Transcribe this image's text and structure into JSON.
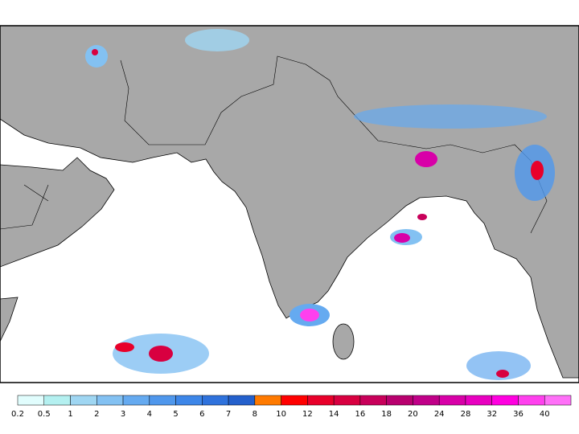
{
  "colorbar": {
    "labels": [
      "0.2",
      "0.5",
      "1",
      "2",
      "3",
      "4",
      "5",
      "6",
      "7",
      "8",
      "10",
      "12",
      "14",
      "16",
      "18",
      "20",
      "24",
      "28",
      "32",
      "36",
      "40"
    ],
    "colors": [
      "#e1fdfd",
      "#b4f0f0",
      "#9fd6f2",
      "#83c1f2",
      "#65aaf0",
      "#4f97ec",
      "#3d86e8",
      "#2f72dc",
      "#2460cc",
      "#ff7a00",
      "#ff0000",
      "#e8002a",
      "#d80040",
      "#c8005a",
      "#b8006e",
      "#c00088",
      "#d800a8",
      "#e800c0",
      "#ff00e0",
      "#ff40ee",
      "#ff70f8"
    ]
  }
}
